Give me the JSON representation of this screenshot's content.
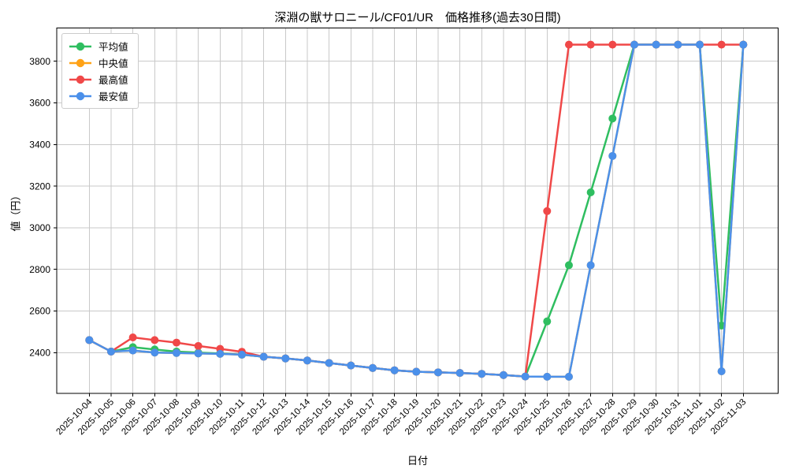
{
  "chart_data": {
    "type": "line",
    "title": "深淵の獣サロニール/CF01/UR　価格推移(過去30日間)",
    "xlabel": "日付",
    "ylabel": "値（円）",
    "categories": [
      "2025-10-04",
      "2025-10-05",
      "2025-10-06",
      "2025-10-07",
      "2025-10-08",
      "2025-10-09",
      "2025-10-10",
      "2025-10-11",
      "2025-10-12",
      "2025-10-13",
      "2025-10-14",
      "2025-10-15",
      "2025-10-16",
      "2025-10-17",
      "2025-10-18",
      "2025-10-19",
      "2025-10-20",
      "2025-10-21",
      "2025-10-22",
      "2025-10-23",
      "2025-10-24",
      "2025-10-25",
      "2025-10-26",
      "2025-10-27",
      "2025-10-28",
      "2025-10-29",
      "2025-10-30",
      "2025-10-31",
      "2025-11-01",
      "2025-11-02",
      "2025-11-03"
    ],
    "series": [
      {
        "name": "平均値",
        "key": "avg",
        "color": "#2fbe60",
        "values": [
          2460,
          2405,
          2426,
          2415,
          2405,
          2400,
          2396,
          2390,
          2380,
          2372,
          2362,
          2350,
          2338,
          2326,
          2315,
          2308,
          2305,
          2302,
          2298,
          2292,
          2285,
          2550,
          2820,
          3170,
          3525,
          3880,
          3880,
          3880,
          3880,
          2530,
          3880
        ]
      },
      {
        "name": "中央値",
        "key": "median",
        "color": "#ffa216",
        "values": [
          2460,
          2405,
          2410,
          2400,
          2398,
          2396,
          2394,
          2390,
          2380,
          2372,
          2362,
          2350,
          2338,
          2326,
          2315,
          2308,
          2305,
          2302,
          2298,
          2292,
          2285,
          2284,
          2284,
          2820,
          3345,
          3880,
          3880,
          3880,
          3880,
          2310,
          3880
        ]
      },
      {
        "name": "最高値",
        "key": "max",
        "color": "#f04848",
        "values": [
          2460,
          2405,
          2473,
          2460,
          2448,
          2432,
          2418,
          2404,
          2380,
          2372,
          2362,
          2350,
          2338,
          2326,
          2315,
          2308,
          2305,
          2302,
          2298,
          2292,
          2285,
          3080,
          3880,
          3880,
          3880,
          3880,
          3880,
          3880,
          3880,
          3880,
          3880
        ]
      },
      {
        "name": "最安値",
        "key": "min",
        "color": "#4b90ea",
        "values": [
          2460,
          2405,
          2410,
          2400,
          2398,
          2396,
          2394,
          2390,
          2380,
          2372,
          2362,
          2350,
          2338,
          2326,
          2315,
          2308,
          2305,
          2302,
          2298,
          2292,
          2285,
          2284,
          2284,
          2820,
          3345,
          3880,
          3880,
          3880,
          3880,
          2310,
          3880
        ]
      }
    ],
    "yticks": [
      2400,
      2600,
      2800,
      3000,
      3200,
      3400,
      3600,
      3800
    ],
    "ylim": [
      2204,
      3960
    ],
    "grid": true,
    "grid_color": "#c9c9c9",
    "legend_position": "upper left",
    "marker": "circle",
    "marker_radius": 5,
    "line_width": 2.5
  }
}
